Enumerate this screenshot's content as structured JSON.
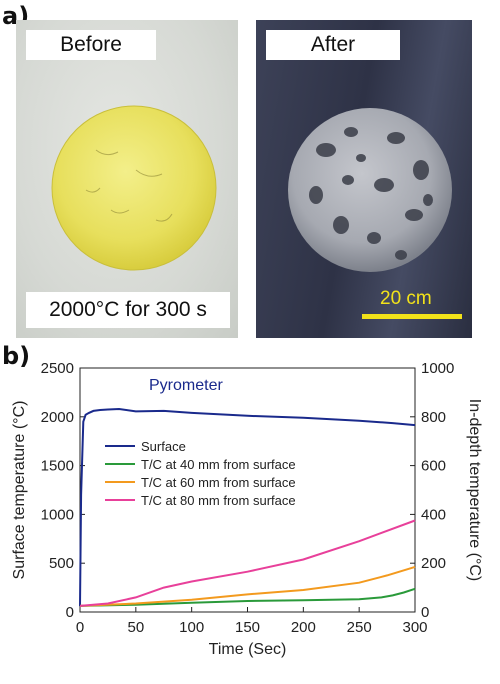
{
  "panel_a": {
    "label": "a)",
    "before_label": "Before",
    "after_label": "After",
    "condition": "2000°C for 300 s",
    "scale_bar": "20 cm"
  },
  "panel_b": {
    "label": "b)"
  },
  "colors": {
    "surface": "#1a2a8c",
    "tc40": "#2a9a3a",
    "tc60": "#f39a1e",
    "tc80": "#e8409a",
    "scale_bar": "#f2e21a"
  },
  "chart_data": {
    "type": "line",
    "annotation": "Pyrometer",
    "xlabel": "Time (Sec)",
    "ylabel": "Surface temperature (°C)",
    "y2label": "In-depth temperature (°C)",
    "xlim": [
      0,
      300
    ],
    "ylim": [
      0,
      2500
    ],
    "y2lim": [
      0,
      1000
    ],
    "xticks": [
      0,
      50,
      100,
      150,
      200,
      250,
      300
    ],
    "yticks": [
      0,
      500,
      1000,
      1500,
      2000,
      2500
    ],
    "y2ticks": [
      0,
      200,
      400,
      600,
      800,
      1000
    ],
    "grid": false,
    "legend_position": "upper-left",
    "series": [
      {
        "name": "Surface",
        "axis": "left",
        "color": "#1a2a8c",
        "x": [
          0,
          1,
          3,
          5,
          8,
          12,
          18,
          25,
          35,
          50,
          75,
          100,
          150,
          200,
          250,
          280,
          300
        ],
        "y": [
          60,
          1200,
          1950,
          2020,
          2040,
          2060,
          2070,
          2075,
          2080,
          2055,
          2060,
          2040,
          2010,
          1990,
          1960,
          1935,
          1915
        ]
      },
      {
        "name": "T/C at 40 mm from surface",
        "axis": "right",
        "color": "#2a9a3a",
        "x": [
          0,
          50,
          100,
          150,
          200,
          250,
          270,
          280,
          290,
          300
        ],
        "y": [
          25,
          30,
          38,
          45,
          48,
          52,
          60,
          68,
          80,
          95
        ]
      },
      {
        "name": "T/C at 60 mm from surface",
        "axis": "right",
        "color": "#f39a1e",
        "x": [
          0,
          50,
          100,
          150,
          200,
          250,
          275,
          300
        ],
        "y": [
          25,
          35,
          50,
          72,
          90,
          120,
          150,
          185
        ]
      },
      {
        "name": "T/C at 80 mm from surface",
        "axis": "right",
        "color": "#e8409a",
        "x": [
          0,
          25,
          50,
          75,
          100,
          150,
          200,
          250,
          300
        ],
        "y": [
          25,
          35,
          60,
          100,
          125,
          165,
          215,
          290,
          375
        ]
      }
    ]
  }
}
